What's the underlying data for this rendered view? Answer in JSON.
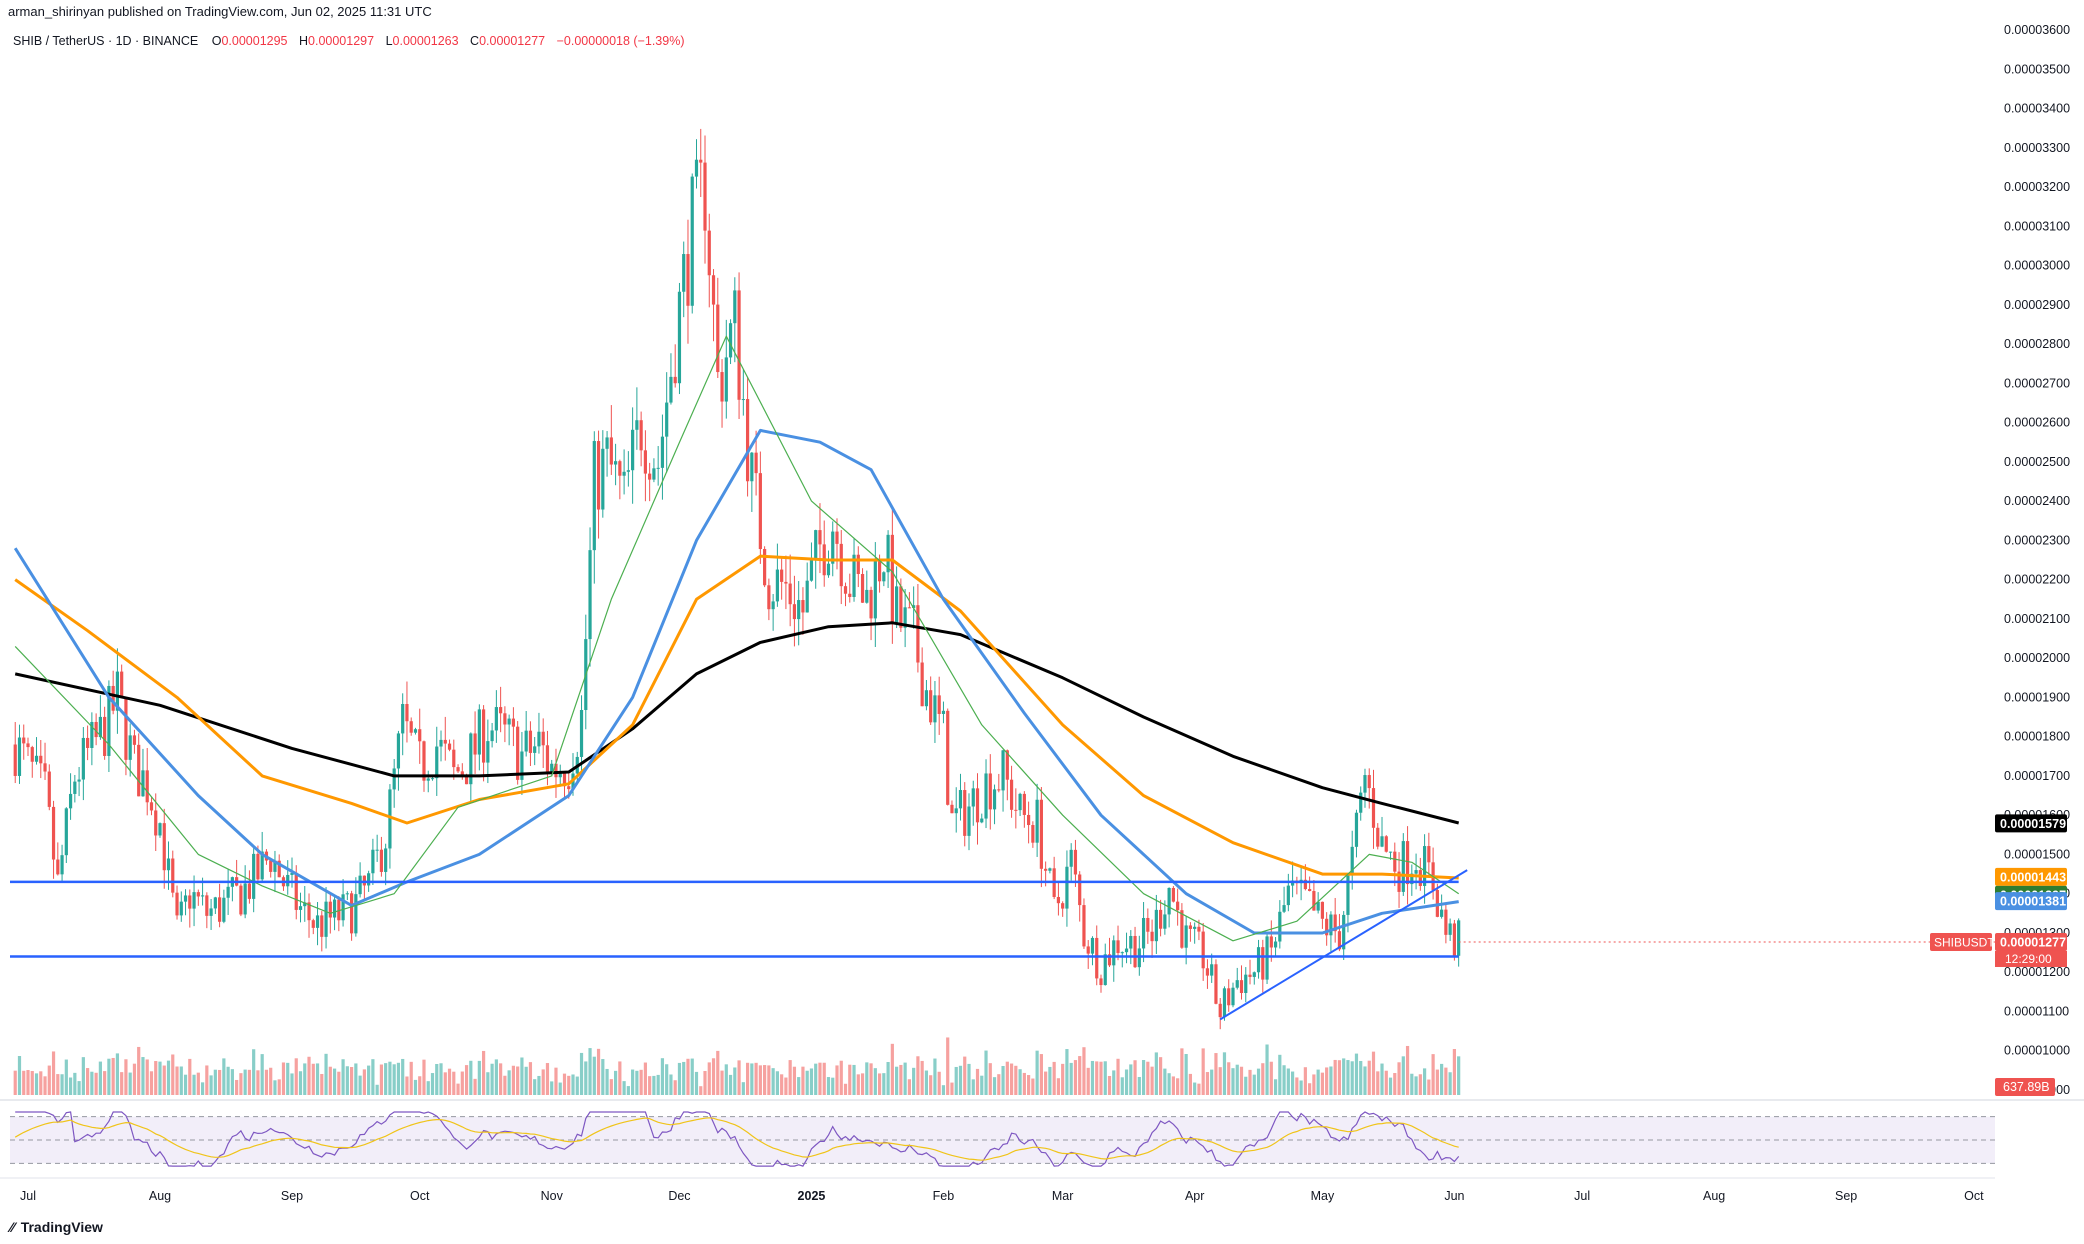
{
  "header": {
    "published": "arman_shirinyan published on TradingView.com, Jun 02, 2025 11:31 UTC"
  },
  "legend": {
    "symbol": "SHIB / TetherUS · 1D · BINANCE",
    "o_label": "O",
    "o_value": "0.00001295",
    "h_label": "H",
    "h_value": "0.00001297",
    "l_label": "L",
    "l_value": "0.00001263",
    "c_label": "C",
    "c_value": "0.00001277",
    "change": "−0.00000018 (−1.39%)"
  },
  "footer": {
    "brand": "TradingView"
  },
  "colors": {
    "up": "#26a69a",
    "down": "#ef5350",
    "sma200": "#000000",
    "ema100": "#ff9800",
    "ema50": "#4a90e2",
    "ema20": "#4caf50",
    "trendline": "#2962ff",
    "rsi": "#7e57c2",
    "rsi_ma": "#f0c419"
  },
  "chart_data": {
    "type": "candlestick",
    "symbol": "SHIBUSDT",
    "timeframe": "1D",
    "exchange": "BINANCE",
    "y_ticks": [
      "0.00003600",
      "0.00003500",
      "0.00003400",
      "0.00003300",
      "0.00003200",
      "0.00003100",
      "0.00003000",
      "0.00002900",
      "0.00002800",
      "0.00002700",
      "0.00002600",
      "0.00002500",
      "0.00002400",
      "0.00002300",
      "0.00002200",
      "0.00002100",
      "0.00002000",
      "0.00001900",
      "0.00001800",
      "0.00001700",
      "0.00001600",
      "0.00001500",
      "0.00001400",
      "0.00001300",
      "0.00001200",
      "0.00001100",
      "0.00001000",
      "0.00000900"
    ],
    "ylim": [
      8.5e-06,
      3.65e-05
    ],
    "x_ticks": [
      "Jul",
      "Aug",
      "Sep",
      "Oct",
      "Nov",
      "Dec",
      "2025",
      "Feb",
      "Mar",
      "Apr",
      "May",
      "Jun",
      "Jul",
      "Aug",
      "Sep",
      "Oct"
    ],
    "x_tick_dates": [
      "2024-07-01",
      "2024-08-01",
      "2024-09-01",
      "2024-10-01",
      "2024-11-01",
      "2024-12-01",
      "2025-01-01",
      "2025-02-01",
      "2025-03-01",
      "2025-04-01",
      "2025-05-01",
      "2025-06-01",
      "2025-07-01",
      "2025-08-01",
      "2025-09-01",
      "2025-10-01"
    ],
    "close_series": [
      [
        "2024-06-28",
        1.78e-05
      ],
      [
        "2024-07-05",
        1.65e-05
      ],
      [
        "2024-07-08",
        1.42e-05
      ],
      [
        "2024-07-12",
        1.7e-05
      ],
      [
        "2024-07-15",
        1.75e-05
      ],
      [
        "2024-07-19",
        1.82e-05
      ],
      [
        "2024-07-22",
        1.9e-05
      ],
      [
        "2024-07-26",
        1.72e-05
      ],
      [
        "2024-07-29",
        1.68e-05
      ],
      [
        "2024-08-01",
        1.58e-05
      ],
      [
        "2024-08-05",
        1.3e-05
      ],
      [
        "2024-08-08",
        1.4e-05
      ],
      [
        "2024-08-12",
        1.35e-05
      ],
      [
        "2024-08-16",
        1.37e-05
      ],
      [
        "2024-08-20",
        1.4e-05
      ],
      [
        "2024-08-24",
        1.45e-05
      ],
      [
        "2024-08-27",
        1.5e-05
      ],
      [
        "2024-08-30",
        1.43e-05
      ],
      [
        "2024-09-03",
        1.36e-05
      ],
      [
        "2024-09-07",
        1.32e-05
      ],
      [
        "2024-09-11",
        1.34e-05
      ],
      [
        "2024-09-15",
        1.36e-05
      ],
      [
        "2024-09-19",
        1.42e-05
      ],
      [
        "2024-09-23",
        1.55e-05
      ],
      [
        "2024-09-27",
        1.83e-05
      ],
      [
        "2024-10-01",
        1.72e-05
      ],
      [
        "2024-10-05",
        1.78e-05
      ],
      [
        "2024-10-09",
        1.7e-05
      ],
      [
        "2024-10-13",
        1.75e-05
      ],
      [
        "2024-10-17",
        1.83e-05
      ],
      [
        "2024-10-21",
        1.8e-05
      ],
      [
        "2024-10-25",
        1.75e-05
      ],
      [
        "2024-10-29",
        1.78e-05
      ],
      [
        "2024-11-01",
        1.72e-05
      ],
      [
        "2024-11-05",
        1.73e-05
      ],
      [
        "2024-11-08",
        1.85e-05
      ],
      [
        "2024-11-11",
        2.45e-05
      ],
      [
        "2024-11-14",
        2.5e-05
      ],
      [
        "2024-11-18",
        2.4e-05
      ],
      [
        "2024-11-22",
        2.6e-05
      ],
      [
        "2024-11-26",
        2.5e-05
      ],
      [
        "2024-11-30",
        2.82e-05
      ],
      [
        "2024-12-04",
        3.1e-05
      ],
      [
        "2024-12-07",
        3.2e-05
      ],
      [
        "2024-12-10",
        2.7e-05
      ],
      [
        "2024-12-14",
        2.85e-05
      ],
      [
        "2024-12-18",
        2.45e-05
      ],
      [
        "2024-12-22",
        2.2e-05
      ],
      [
        "2024-12-26",
        2.18e-05
      ],
      [
        "2024-12-30",
        2.12e-05
      ],
      [
        "2025-01-03",
        2.28e-05
      ],
      [
        "2025-01-06",
        2.35e-05
      ],
      [
        "2025-01-10",
        2.2e-05
      ],
      [
        "2025-01-14",
        2.15e-05
      ],
      [
        "2025-01-18",
        2.28e-05
      ],
      [
        "2025-01-21",
        2.1e-05
      ],
      [
        "2025-01-25",
        2.05e-05
      ],
      [
        "2025-01-28",
        1.92e-05
      ],
      [
        "2025-02-01",
        1.8e-05
      ],
      [
        "2025-02-03",
        1.58e-05
      ],
      [
        "2025-02-07",
        1.62e-05
      ],
      [
        "2025-02-11",
        1.68e-05
      ],
      [
        "2025-02-15",
        1.7e-05
      ],
      [
        "2025-02-19",
        1.6e-05
      ],
      [
        "2025-02-23",
        1.58e-05
      ],
      [
        "2025-02-27",
        1.35e-05
      ],
      [
        "2025-03-03",
        1.48e-05
      ],
      [
        "2025-03-06",
        1.3e-05
      ],
      [
        "2025-03-10",
        1.22e-05
      ],
      [
        "2025-03-14",
        1.28e-05
      ],
      [
        "2025-03-18",
        1.27e-05
      ],
      [
        "2025-03-22",
        1.3e-05
      ],
      [
        "2025-03-26",
        1.42e-05
      ],
      [
        "2025-03-30",
        1.28e-05
      ],
      [
        "2025-04-03",
        1.24e-05
      ],
      [
        "2025-04-07",
        1.1e-05
      ],
      [
        "2025-04-11",
        1.18e-05
      ],
      [
        "2025-04-15",
        1.2e-05
      ],
      [
        "2025-04-19",
        1.25e-05
      ],
      [
        "2025-04-23",
        1.4e-05
      ],
      [
        "2025-04-27",
        1.38e-05
      ],
      [
        "2025-05-01",
        1.32e-05
      ],
      [
        "2025-05-05",
        1.3e-05
      ],
      [
        "2025-05-08",
        1.48e-05
      ],
      [
        "2025-05-11",
        1.7e-05
      ],
      [
        "2025-05-15",
        1.52e-05
      ],
      [
        "2025-05-19",
        1.47e-05
      ],
      [
        "2025-05-23",
        1.5e-05
      ],
      [
        "2025-05-27",
        1.43e-05
      ],
      [
        "2025-05-30",
        1.3e-05
      ],
      [
        "2025-06-01",
        1.28e-05
      ],
      [
        "2025-06-02",
        1.277e-05
      ]
    ],
    "series": [
      {
        "name": "SMA 200",
        "color": "#000000",
        "last_value": "0.00001579",
        "values": [
          [
            "2024-06-28",
            1.96e-05
          ],
          [
            "2024-08-01",
            1.88e-05
          ],
          [
            "2024-09-01",
            1.77e-05
          ],
          [
            "2024-09-25",
            1.7e-05
          ],
          [
            "2024-10-15",
            1.7e-05
          ],
          [
            "2024-11-05",
            1.71e-05
          ],
          [
            "2024-11-20",
            1.82e-05
          ],
          [
            "2024-12-05",
            1.96e-05
          ],
          [
            "2024-12-20",
            2.04e-05
          ],
          [
            "2025-01-05",
            2.08e-05
          ],
          [
            "2025-01-20",
            2.09e-05
          ],
          [
            "2025-02-05",
            2.06e-05
          ],
          [
            "2025-03-01",
            1.95e-05
          ],
          [
            "2025-03-20",
            1.85e-05
          ],
          [
            "2025-04-10",
            1.75e-05
          ],
          [
            "2025-05-01",
            1.67e-05
          ],
          [
            "2025-05-15",
            1.63e-05
          ],
          [
            "2025-06-02",
            1.58e-05
          ]
        ]
      },
      {
        "name": "EMA 100",
        "color": "#ff9800",
        "last_value": "0.00001443",
        "values": [
          [
            "2024-06-28",
            2.2e-05
          ],
          [
            "2024-07-15",
            2.07e-05
          ],
          [
            "2024-08-05",
            1.9e-05
          ],
          [
            "2024-08-25",
            1.7e-05
          ],
          [
            "2024-09-15",
            1.63e-05
          ],
          [
            "2024-09-28",
            1.58e-05
          ],
          [
            "2024-10-15",
            1.64e-05
          ],
          [
            "2024-11-05",
            1.68e-05
          ],
          [
            "2024-11-20",
            1.83e-05
          ],
          [
            "2024-12-05",
            2.15e-05
          ],
          [
            "2024-12-20",
            2.26e-05
          ],
          [
            "2025-01-05",
            2.25e-05
          ],
          [
            "2025-01-20",
            2.25e-05
          ],
          [
            "2025-02-05",
            2.12e-05
          ],
          [
            "2025-03-01",
            1.83e-05
          ],
          [
            "2025-03-20",
            1.65e-05
          ],
          [
            "2025-04-10",
            1.53e-05
          ],
          [
            "2025-05-01",
            1.45e-05
          ],
          [
            "2025-05-15",
            1.45e-05
          ],
          [
            "2025-06-02",
            1.44e-05
          ]
        ]
      },
      {
        "name": "EMA 50",
        "color": "#4a90e2",
        "last_value": "0.00001381",
        "values": [
          [
            "2024-06-28",
            2.28e-05
          ],
          [
            "2024-07-20",
            1.9e-05
          ],
          [
            "2024-08-10",
            1.65e-05
          ],
          [
            "2024-08-25",
            1.5e-05
          ],
          [
            "2024-09-15",
            1.37e-05
          ],
          [
            "2024-09-28",
            1.43e-05
          ],
          [
            "2024-10-15",
            1.5e-05
          ],
          [
            "2024-11-05",
            1.65e-05
          ],
          [
            "2024-11-20",
            1.9e-05
          ],
          [
            "2024-12-05",
            2.3e-05
          ],
          [
            "2024-12-20",
            2.58e-05
          ],
          [
            "2025-01-03",
            2.55e-05
          ],
          [
            "2025-01-15",
            2.48e-05
          ],
          [
            "2025-02-01",
            2.15e-05
          ],
          [
            "2025-02-20",
            1.86e-05
          ],
          [
            "2025-03-10",
            1.6e-05
          ],
          [
            "2025-03-30",
            1.4e-05
          ],
          [
            "2025-04-15",
            1.3e-05
          ],
          [
            "2025-05-01",
            1.3e-05
          ],
          [
            "2025-05-15",
            1.35e-05
          ],
          [
            "2025-06-02",
            1.38e-05
          ]
        ]
      },
      {
        "name": "EMA 20",
        "color": "#4caf50",
        "last_value": "0.00001397",
        "values": [
          [
            "2024-06-28",
            2.03e-05
          ],
          [
            "2024-07-20",
            1.78e-05
          ],
          [
            "2024-08-10",
            1.5e-05
          ],
          [
            "2024-08-25",
            1.42e-05
          ],
          [
            "2024-09-10",
            1.35e-05
          ],
          [
            "2024-09-25",
            1.4e-05
          ],
          [
            "2024-10-10",
            1.62e-05
          ],
          [
            "2024-11-01",
            1.7e-05
          ],
          [
            "2024-11-15",
            2.15e-05
          ],
          [
            "2024-12-01",
            2.55e-05
          ],
          [
            "2024-12-12",
            2.82e-05
          ],
          [
            "2025-01-01",
            2.4e-05
          ],
          [
            "2025-01-20",
            2.22e-05
          ],
          [
            "2025-02-10",
            1.83e-05
          ],
          [
            "2025-03-01",
            1.6e-05
          ],
          [
            "2025-03-20",
            1.4e-05
          ],
          [
            "2025-04-10",
            1.28e-05
          ],
          [
            "2025-04-25",
            1.33e-05
          ],
          [
            "2025-05-12",
            1.5e-05
          ],
          [
            "2025-05-22",
            1.48e-05
          ],
          [
            "2025-06-02",
            1.4e-05
          ]
        ]
      }
    ],
    "price_labels": [
      {
        "text": "0.00001579",
        "bg": "#000000"
      },
      {
        "text": "0.00001443",
        "bg": "#ff9800"
      },
      {
        "text": "0.00001397",
        "bg": "#2e7d32"
      },
      {
        "text": "0.00001381",
        "bg": "#4a90e2"
      },
      {
        "text": "0.00001277",
        "bg": "#ef5350",
        "tag": "SHIBUSDT",
        "countdown": "12:29:00"
      }
    ],
    "horizontal_levels": [
      1.43e-05,
      1.24e-05
    ],
    "trendline": {
      "from": [
        "2025-04-07",
        1.08e-05
      ],
      "to": [
        "2025-06-04",
        1.46e-05
      ]
    },
    "volume": {
      "last_label": "637.89B"
    },
    "rsi": {
      "levels": [
        "75.00",
        "25.00"
      ],
      "rsi_value": "38.12",
      "ma_value": "47.34"
    },
    "grid": false,
    "legend_position": "top-left"
  }
}
